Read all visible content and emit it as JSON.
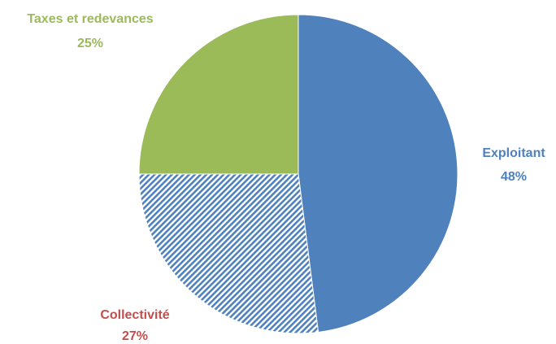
{
  "chart_data": {
    "type": "pie",
    "slices": [
      {
        "label": "Exploitant",
        "value": 48,
        "value_label": "48%",
        "color": "#4f81bd",
        "label_color": "#4f81bd",
        "pattern": "solid"
      },
      {
        "label": "Collectivité",
        "value": 27,
        "value_label": "27%",
        "color": "#4f81bd",
        "label_color": "#c0504d",
        "pattern": "diagonal-hatch"
      },
      {
        "label": "Taxes et redevances",
        "value": 25,
        "value_label": "25%",
        "color": "#9bbb59",
        "label_color": "#9bbb59",
        "pattern": "solid"
      }
    ],
    "start_angle": "12 o'clock",
    "direction": "clockwise",
    "legend": "none",
    "data_labels": "outside"
  }
}
